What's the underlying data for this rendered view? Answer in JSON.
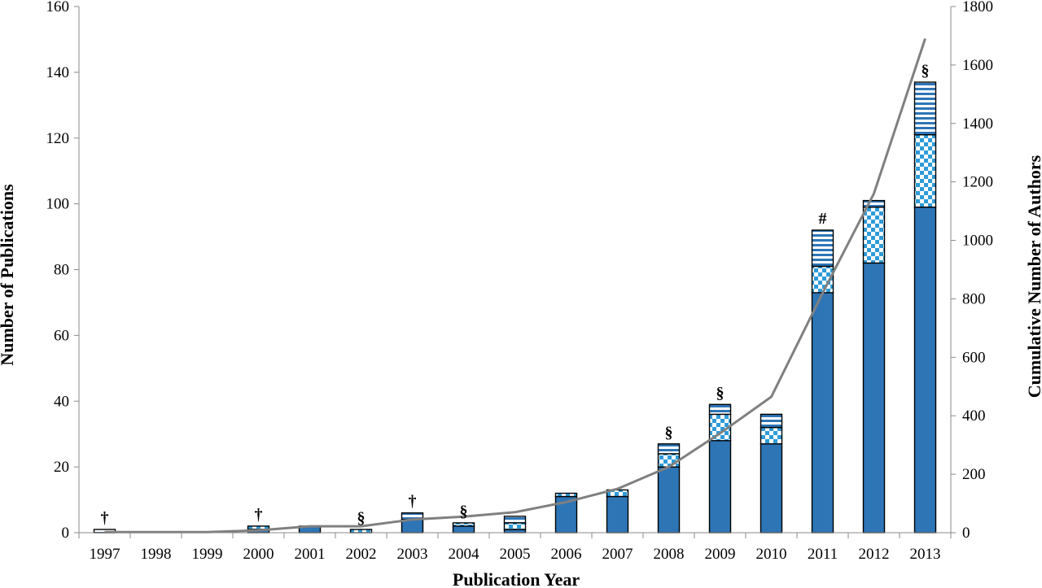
{
  "chart_data": {
    "type": "bar",
    "stacked": true,
    "categories": [
      "1997",
      "1998",
      "1999",
      "2000",
      "2001",
      "2002",
      "2003",
      "2004",
      "2005",
      "2006",
      "2007",
      "2008",
      "2009",
      "2010",
      "2011",
      "2012",
      "2013"
    ],
    "series": [
      {
        "fill": "solid",
        "color": "#2E75B6",
        "values": [
          0,
          0,
          0,
          1,
          2,
          0,
          4,
          2,
          1,
          11,
          11,
          20,
          28,
          27,
          73,
          82,
          99
        ]
      },
      {
        "fill": "checker",
        "color": "#2E9BD9",
        "values": [
          0,
          0,
          0,
          1,
          0,
          1,
          0,
          1,
          2,
          1,
          2,
          4,
          8,
          5,
          8,
          17,
          22
        ]
      },
      {
        "fill": "horizontal-stripes",
        "color": "#2E75B6",
        "values": [
          1,
          0,
          0,
          0,
          0,
          0,
          2,
          0,
          2,
          0,
          0,
          3,
          3,
          4,
          11,
          2,
          16
        ]
      }
    ],
    "line": {
      "color": "#808080",
      "axis": "right",
      "values": [
        2,
        2,
        2,
        8,
        22,
        22,
        45,
        55,
        70,
        105,
        150,
        225,
        340,
        465,
        820,
        1160,
        1690
      ]
    },
    "markers": [
      {
        "category": "1997",
        "symbol": "†"
      },
      {
        "category": "2000",
        "symbol": "†"
      },
      {
        "category": "2002",
        "symbol": "§"
      },
      {
        "category": "2003",
        "symbol": "†"
      },
      {
        "category": "2004",
        "symbol": "§"
      },
      {
        "category": "2008",
        "symbol": "§"
      },
      {
        "category": "2009",
        "symbol": "§"
      },
      {
        "category": "2011",
        "symbol": "#"
      },
      {
        "category": "2013",
        "symbol": "§"
      }
    ],
    "xlabel": "Publication Year",
    "ylabel": "Number of Publications",
    "y2label": "Cumulative Number of Authors",
    "ylim": [
      0,
      160
    ],
    "y2lim": [
      0,
      1800
    ],
    "yticks": [
      0,
      20,
      40,
      60,
      80,
      100,
      120,
      140,
      160
    ],
    "y2ticks": [
      0,
      200,
      400,
      600,
      800,
      1000,
      1200,
      1400,
      1600,
      1800
    ],
    "grid": false,
    "legend": "none"
  }
}
